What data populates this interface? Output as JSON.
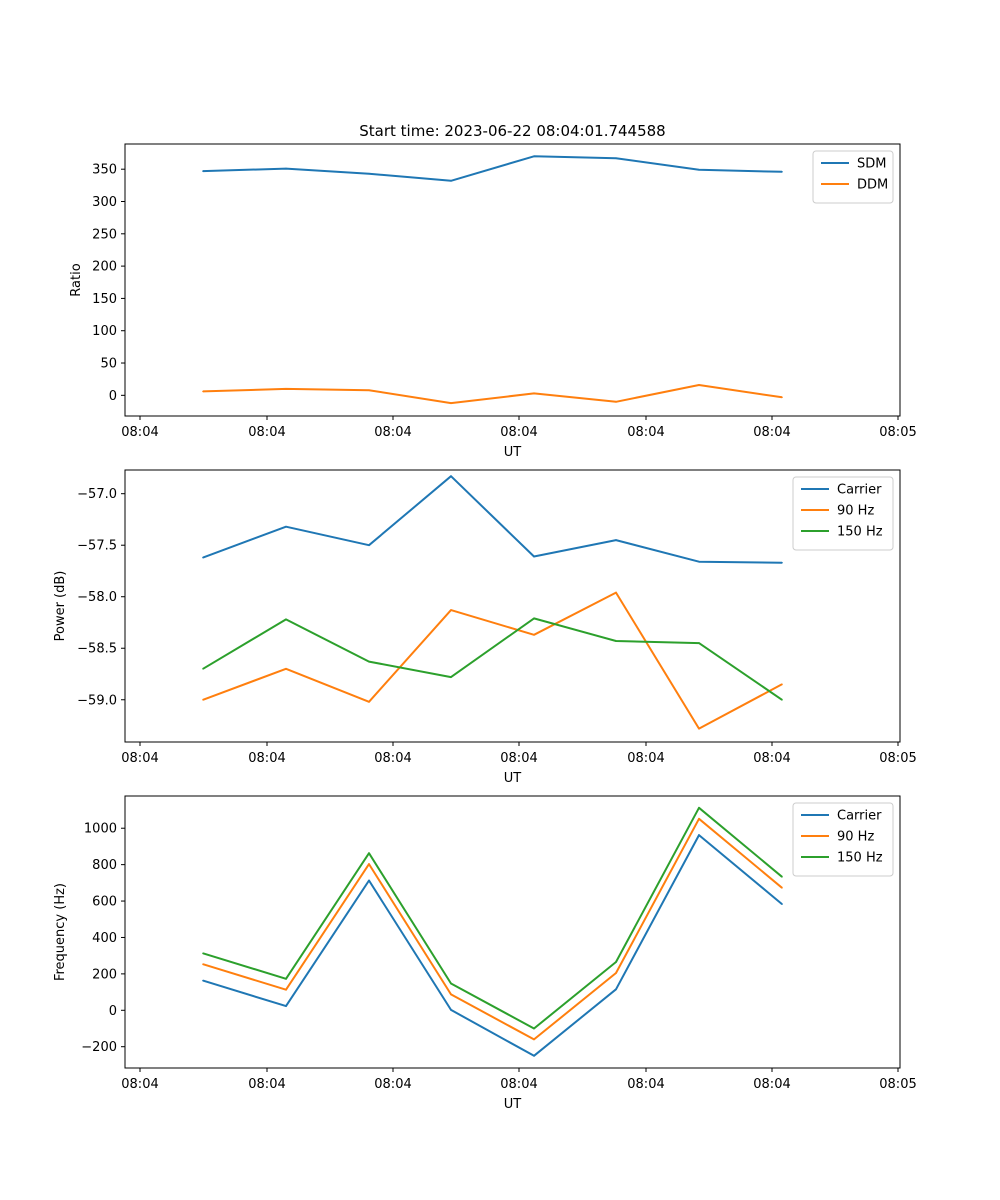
{
  "figure_title": "Start time: 2023-06-22 08:04:01.744588",
  "chart_data": [
    {
      "type": "line",
      "title": "Start time: 2023-06-22 08:04:01.744588",
      "xlabel": "UT",
      "ylabel": "Ratio",
      "x_tick_labels": [
        "08:04",
        "08:04",
        "08:04",
        "08:04",
        "08:04",
        "08:04",
        "08:05"
      ],
      "y_ticks": [
        0,
        50,
        100,
        150,
        200,
        250,
        300,
        350
      ],
      "y_tick_labels": [
        "0",
        "50",
        "100",
        "150",
        "200",
        "250",
        "300",
        "350"
      ],
      "ylim": [
        -32,
        389
      ],
      "grid": false,
      "legend_position": "top-right",
      "series": [
        {
          "name": "SDM",
          "color": "#1f77b4",
          "values": [
            347,
            351,
            343,
            332,
            370,
            367,
            349,
            346
          ]
        },
        {
          "name": "DDM",
          "color": "#ff7f0e",
          "values": [
            6,
            10,
            8,
            -12,
            3,
            -10,
            16,
            -3
          ]
        }
      ]
    },
    {
      "type": "line",
      "title": "",
      "xlabel": "UT",
      "ylabel": "Power (dB)",
      "x_tick_labels": [
        "08:04",
        "08:04",
        "08:04",
        "08:04",
        "08:04",
        "08:04",
        "08:05"
      ],
      "y_ticks": [
        -59.0,
        -58.5,
        -58.0,
        -57.5,
        -57.0
      ],
      "y_tick_labels": [
        "−59.0",
        "−58.5",
        "−58.0",
        "−57.5",
        "−57.0"
      ],
      "ylim": [
        -59.41,
        -56.77
      ],
      "grid": false,
      "legend_position": "top-right",
      "series": [
        {
          "name": "Carrier",
          "color": "#1f77b4",
          "values": [
            -57.62,
            -57.32,
            -57.5,
            -56.83,
            -57.61,
            -57.45,
            -57.66,
            -57.67
          ]
        },
        {
          "name": "90 Hz",
          "color": "#ff7f0e",
          "values": [
            -59.0,
            -58.7,
            -59.02,
            -58.13,
            -58.37,
            -57.96,
            -59.28,
            -58.85
          ]
        },
        {
          "name": "150 Hz",
          "color": "#2ca02c",
          "values": [
            -58.7,
            -58.22,
            -58.63,
            -58.78,
            -58.21,
            -58.43,
            -58.45,
            -59.0
          ]
        }
      ]
    },
    {
      "type": "line",
      "title": "",
      "xlabel": "UT",
      "ylabel": "Frequency (Hz)",
      "x_tick_labels": [
        "08:04",
        "08:04",
        "08:04",
        "08:04",
        "08:04",
        "08:04",
        "08:05"
      ],
      "y_ticks": [
        -200,
        0,
        200,
        400,
        600,
        800,
        1000
      ],
      "y_tick_labels": [
        "−200",
        "0",
        "200",
        "400",
        "600",
        "800",
        "1000"
      ],
      "ylim": [
        -317,
        1177
      ],
      "grid": false,
      "legend_position": "top-right",
      "series": [
        {
          "name": "Carrier",
          "color": "#1f77b4",
          "values": [
            163,
            23,
            713,
            2,
            -250,
            115,
            962,
            583
          ]
        },
        {
          "name": "90 Hz",
          "color": "#ff7f0e",
          "values": [
            253,
            113,
            803,
            87,
            -160,
            205,
            1052,
            673
          ]
        },
        {
          "name": "150 Hz",
          "color": "#2ca02c",
          "values": [
            313,
            173,
            863,
            147,
            -100,
            265,
            1112,
            733
          ]
        }
      ]
    }
  ]
}
